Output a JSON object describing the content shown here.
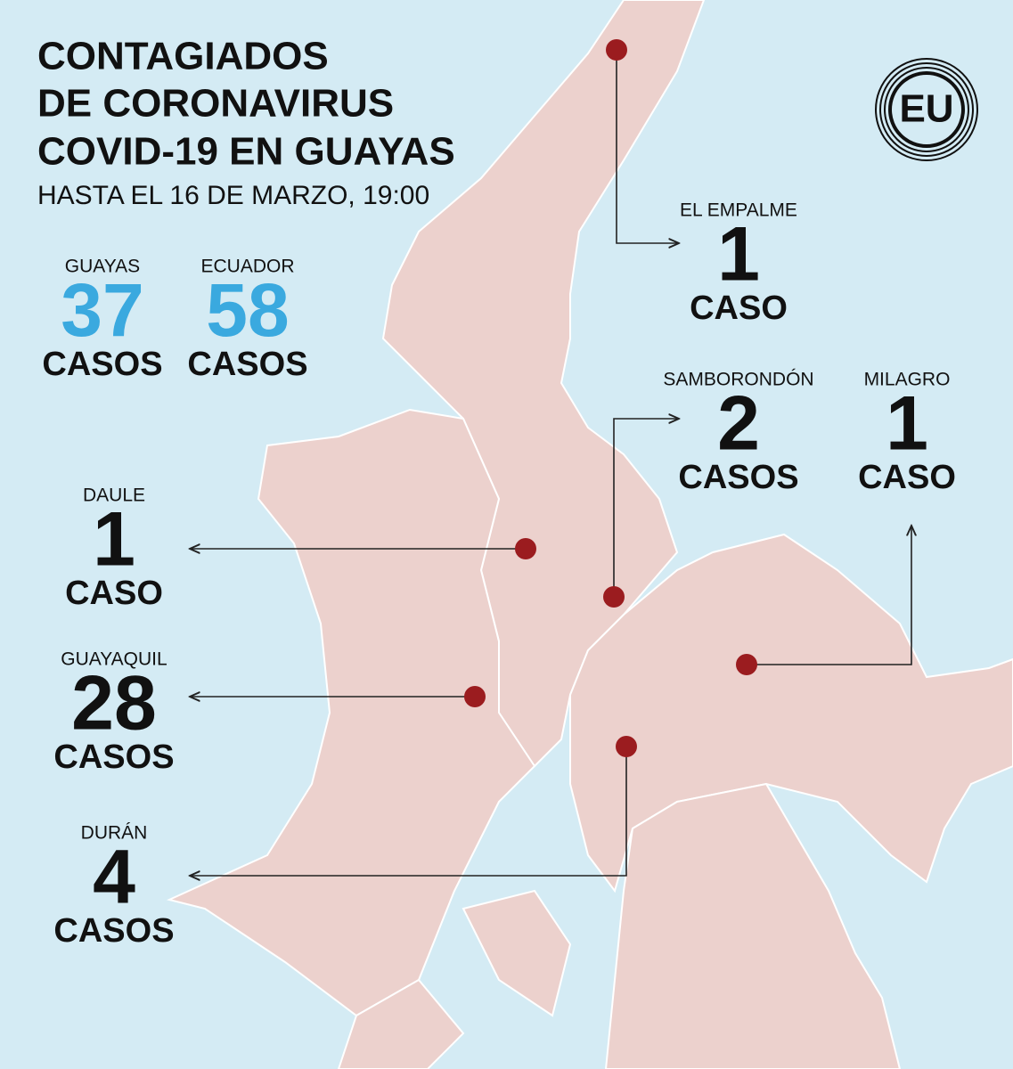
{
  "header": {
    "title_lines": [
      "CONTAGIADOS",
      "DE CORONAVIRUS",
      "COVID-19 EN GUAYAS"
    ],
    "subtitle": "HASTA EL 16 DE MARZO, 19:00"
  },
  "totals": [
    {
      "name": "GUAYAS",
      "count": 37,
      "unit": "CASOS"
    },
    {
      "name": "ECUADOR",
      "count": 58,
      "unit": "CASOS"
    }
  ],
  "logo": "EU",
  "locations": [
    {
      "name": "EL EMPALME",
      "count": 1,
      "unit": "CASO"
    },
    {
      "name": "SAMBORONDÓN",
      "count": 2,
      "unit": "CASOS"
    },
    {
      "name": "MILAGRO",
      "count": 1,
      "unit": "CASO"
    },
    {
      "name": "DAULE",
      "count": 1,
      "unit": "CASO"
    },
    {
      "name": "GUAYAQUIL",
      "count": 28,
      "unit": "CASOS"
    },
    {
      "name": "DURÁN",
      "count": 4,
      "unit": "CASOS"
    }
  ]
}
